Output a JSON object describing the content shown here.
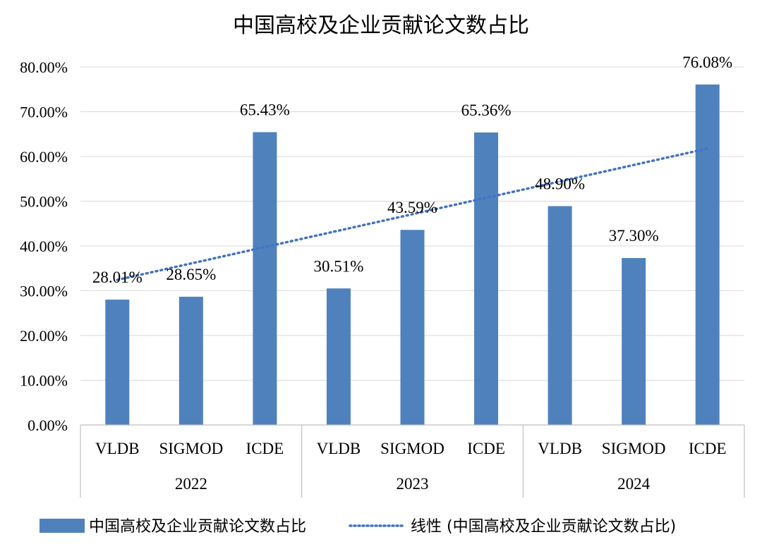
{
  "chart_data": {
    "type": "bar",
    "title": "中国高校及企业贡献论文数占比",
    "xlabel": "",
    "ylabel": "",
    "ylim": [
      0,
      80
    ],
    "yticks": [
      "0.00%",
      "10.00%",
      "20.00%",
      "30.00%",
      "40.00%",
      "50.00%",
      "60.00%",
      "70.00%",
      "80.00%"
    ],
    "groups": [
      "2022",
      "2023",
      "2024"
    ],
    "categories": [
      "VLDB",
      "SIGMOD",
      "ICDE",
      "VLDB",
      "SIGMOD",
      "ICDE",
      "VLDB",
      "SIGMOD",
      "ICDE"
    ],
    "series": [
      {
        "name": "中国高校及企业贡献论文数占比",
        "values": [
          28.01,
          28.65,
          65.43,
          30.51,
          43.59,
          65.36,
          48.9,
          37.3,
          76.08
        ],
        "labels": [
          "28.01%",
          "28.65%",
          "65.43%",
          "30.51%",
          "43.59%",
          "65.36%",
          "48.90%",
          "37.30%",
          "76.08%"
        ],
        "color": "#4F81BD"
      }
    ],
    "trendline": {
      "name": "线性 (中国高校及企业贡献论文数占比)",
      "type": "linear",
      "color": "#4472C4"
    },
    "grid": true,
    "legend_position": "bottom"
  }
}
